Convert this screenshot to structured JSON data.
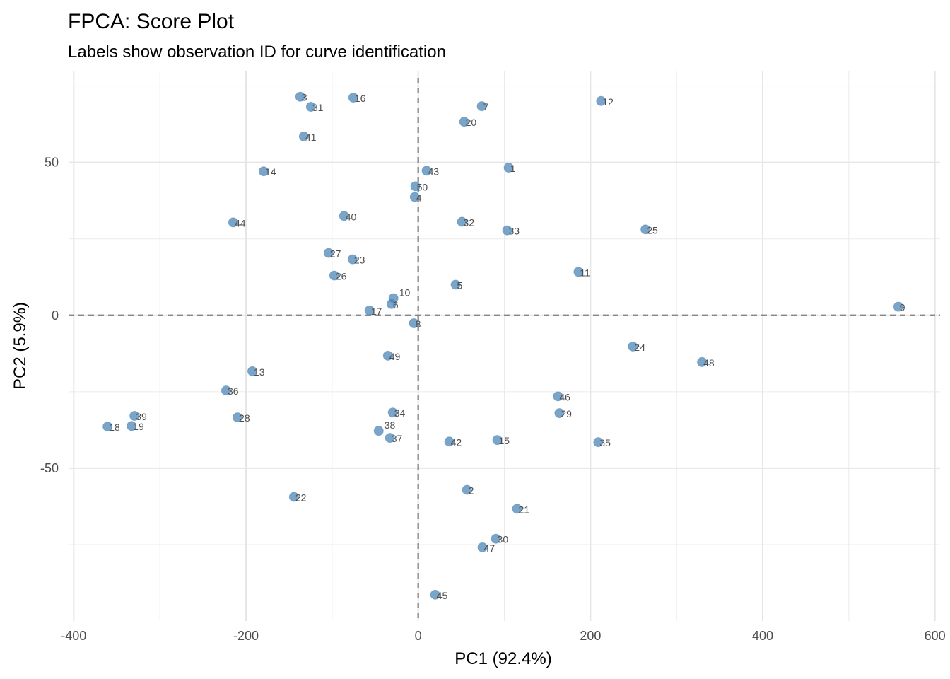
{
  "chart_data": {
    "type": "scatter",
    "title": "FPCA: Score Plot",
    "subtitle": "Labels show observation ID for curve identification",
    "xlabel": "PC1 (92.4%)",
    "ylabel": "PC2 (5.9%)",
    "xlim": [
      -406,
      606
    ],
    "ylim": [
      -100,
      80
    ],
    "xticks": [
      -400,
      -200,
      0,
      200,
      400,
      600
    ],
    "yticks": [
      -50,
      0,
      50
    ],
    "grid": true,
    "reference_lines": {
      "x": 0,
      "y": 0,
      "style": "dashed"
    },
    "point_color": "#4682B4",
    "points": [
      {
        "id": "1",
        "x": 105,
        "y": 48.3
      },
      {
        "id": "2",
        "x": 56.6,
        "y": -57.1
      },
      {
        "id": "3",
        "x": -137,
        "y": 71.5
      },
      {
        "id": "4",
        "x": -4,
        "y": 38.7
      },
      {
        "id": "5",
        "x": 43.4,
        "y": 10.0
      },
      {
        "id": "6",
        "x": -31,
        "y": 3.7
      },
      {
        "id": "7",
        "x": 73.8,
        "y": 68.4
      },
      {
        "id": "8",
        "x": -5,
        "y": -2.6
      },
      {
        "id": "9",
        "x": 557.4,
        "y": 2.8
      },
      {
        "id": "10",
        "x": -28.7,
        "y": 5.6
      },
      {
        "id": "11",
        "x": 186.1,
        "y": 14.2
      },
      {
        "id": "12",
        "x": 212.3,
        "y": 70.1
      },
      {
        "id": "13",
        "x": -192.6,
        "y": -18.3
      },
      {
        "id": "14",
        "x": -179.5,
        "y": 47.1
      },
      {
        "id": "15",
        "x": 91.8,
        "y": -40.8
      },
      {
        "id": "16",
        "x": -75.4,
        "y": 71.2
      },
      {
        "id": "17",
        "x": -56.6,
        "y": 1.6
      },
      {
        "id": "18",
        "x": -360.7,
        "y": -36.4
      },
      {
        "id": "19",
        "x": -332.8,
        "y": -36.2
      },
      {
        "id": "20",
        "x": 53.3,
        "y": 63.3
      },
      {
        "id": "21",
        "x": 114.8,
        "y": -63.3
      },
      {
        "id": "22",
        "x": -144.3,
        "y": -59.4
      },
      {
        "id": "23",
        "x": -76.2,
        "y": 18.3
      },
      {
        "id": "24",
        "x": 249.2,
        "y": -10.2
      },
      {
        "id": "25",
        "x": 263.9,
        "y": 28.1
      },
      {
        "id": "26",
        "x": -97.5,
        "y": 13.0
      },
      {
        "id": "27",
        "x": -104.1,
        "y": 20.4
      },
      {
        "id": "28",
        "x": -209.8,
        "y": -33.4
      },
      {
        "id": "29",
        "x": 163.9,
        "y": -32.0
      },
      {
        "id": "30",
        "x": 90.2,
        "y": -73.1
      },
      {
        "id": "31",
        "x": -124.6,
        "y": 68.2
      },
      {
        "id": "32",
        "x": 50.8,
        "y": 30.6
      },
      {
        "id": "33",
        "x": 103.3,
        "y": 27.8
      },
      {
        "id": "34",
        "x": -29.5,
        "y": -31.8
      },
      {
        "id": "35",
        "x": 209.0,
        "y": -41.5
      },
      {
        "id": "36",
        "x": -223,
        "y": -24.6
      },
      {
        "id": "37",
        "x": -32.8,
        "y": -40.1
      },
      {
        "id": "38",
        "x": -45.9,
        "y": -37.8
      },
      {
        "id": "39",
        "x": -329.5,
        "y": -32.9
      },
      {
        "id": "40",
        "x": -86.1,
        "y": 32.5
      },
      {
        "id": "41",
        "x": -132.8,
        "y": 58.5
      },
      {
        "id": "42",
        "x": 36.1,
        "y": -41.3
      },
      {
        "id": "43",
        "x": 9.8,
        "y": 47.3
      },
      {
        "id": "44",
        "x": -214.8,
        "y": 30.4
      },
      {
        "id": "45",
        "x": 19.7,
        "y": -91.4
      },
      {
        "id": "46",
        "x": 162.3,
        "y": -26.5
      },
      {
        "id": "47",
        "x": 74.6,
        "y": -75.9
      },
      {
        "id": "48",
        "x": 329.5,
        "y": -15.3
      },
      {
        "id": "49",
        "x": -35.2,
        "y": -13.2
      },
      {
        "id": "50",
        "x": -3.3,
        "y": 42.2
      }
    ]
  }
}
